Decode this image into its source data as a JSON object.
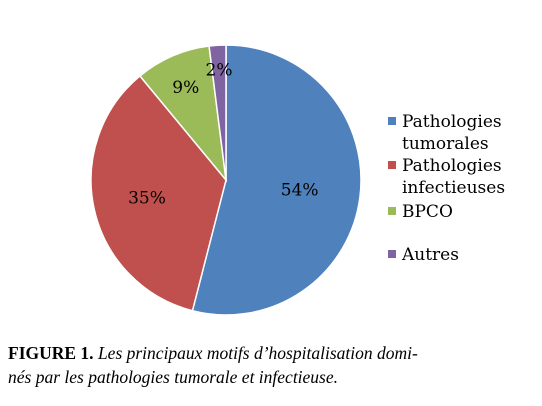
{
  "chart_data": {
    "type": "pie",
    "categories": [
      "Pathologies tumorales",
      "Pathologies infectieuses",
      "BPCO",
      "Autres"
    ],
    "values": [
      54,
      35,
      9,
      2
    ],
    "value_labels": [
      "54%",
      "35%",
      "9%",
      "2%"
    ],
    "colors": [
      "#4f81bd",
      "#c0504d",
      "#9bbb59",
      "#8064a2"
    ],
    "legend": {
      "placement": "right",
      "entries": [
        [
          "Pathologies",
          "tumorales"
        ],
        [
          "Pathologies",
          "infectieuses"
        ],
        [
          "BPCO"
        ],
        [
          "Autres"
        ]
      ]
    },
    "title": ""
  },
  "caption": {
    "prefix": "FIGURE 1.",
    "line1": "Les principaux motifs d’hospitalisation domi-",
    "line2": "nés par les pathologies tumorale et infectieuse."
  }
}
